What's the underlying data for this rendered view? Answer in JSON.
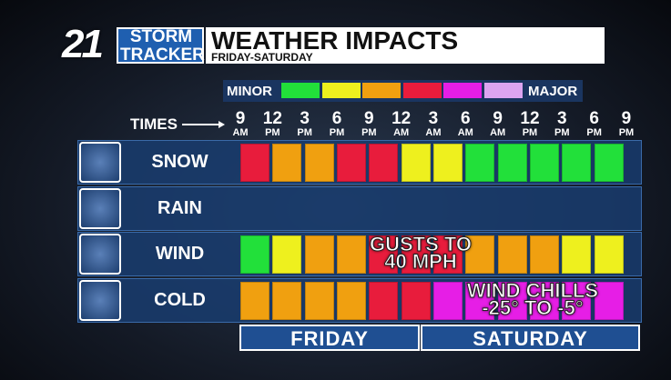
{
  "header": {
    "channel": "21",
    "brand_top": "STORM",
    "brand_bottom": "TRACKER",
    "title": "WEATHER IMPACTS",
    "subtitle": "FRIDAY-SATURDAY"
  },
  "legend": {
    "low": "MINOR",
    "high": "MAJOR",
    "colors": [
      "#22e03a",
      "#eef01e",
      "#f0a010",
      "#e81c3c",
      "#e61ee6",
      "#dca4f0"
    ]
  },
  "times": {
    "label": "TIMES",
    "ticks": [
      {
        "hour": "9",
        "ampm": "AM"
      },
      {
        "hour": "12",
        "ampm": "PM"
      },
      {
        "hour": "3",
        "ampm": "PM"
      },
      {
        "hour": "6",
        "ampm": "PM"
      },
      {
        "hour": "9",
        "ampm": "PM"
      },
      {
        "hour": "12",
        "ampm": "AM"
      },
      {
        "hour": "3",
        "ampm": "AM"
      },
      {
        "hour": "6",
        "ampm": "AM"
      },
      {
        "hour": "9",
        "ampm": "AM"
      },
      {
        "hour": "12",
        "ampm": "PM"
      },
      {
        "hour": "3",
        "ampm": "PM"
      },
      {
        "hour": "6",
        "ampm": "PM"
      },
      {
        "hour": "9",
        "ampm": "PM"
      }
    ]
  },
  "rows": [
    {
      "label": "SNOW",
      "cells": [
        "#e81c3c",
        "#f0a010",
        "#f0a010",
        "#e81c3c",
        "#e81c3c",
        "#eef01e",
        "#eef01e",
        "#22e03a",
        "#22e03a",
        "#22e03a",
        "#22e03a",
        "#22e03a"
      ]
    },
    {
      "label": "RAIN",
      "cells": []
    },
    {
      "label": "WIND",
      "cells": [
        "#22e03a",
        "#eef01e",
        "#f0a010",
        "#f0a010",
        "#e81c3c",
        "#e81c3c",
        "#e81c3c",
        "#f0a010",
        "#f0a010",
        "#f0a010",
        "#eef01e",
        "#eef01e"
      ],
      "note": [
        "GUSTS TO",
        "40 MPH"
      ]
    },
    {
      "label": "COLD",
      "cells": [
        "#f0a010",
        "#f0a010",
        "#f0a010",
        "#f0a010",
        "#e81c3c",
        "#e81c3c",
        "#e61ee6",
        "#e61ee6",
        "#e61ee6",
        "#e61ee6",
        "#e61ee6",
        "#e61ee6"
      ],
      "note": [
        "WIND CHILLS",
        "-25° TO -5°"
      ]
    }
  ],
  "days": [
    "FRIDAY",
    "SATURDAY"
  ]
}
